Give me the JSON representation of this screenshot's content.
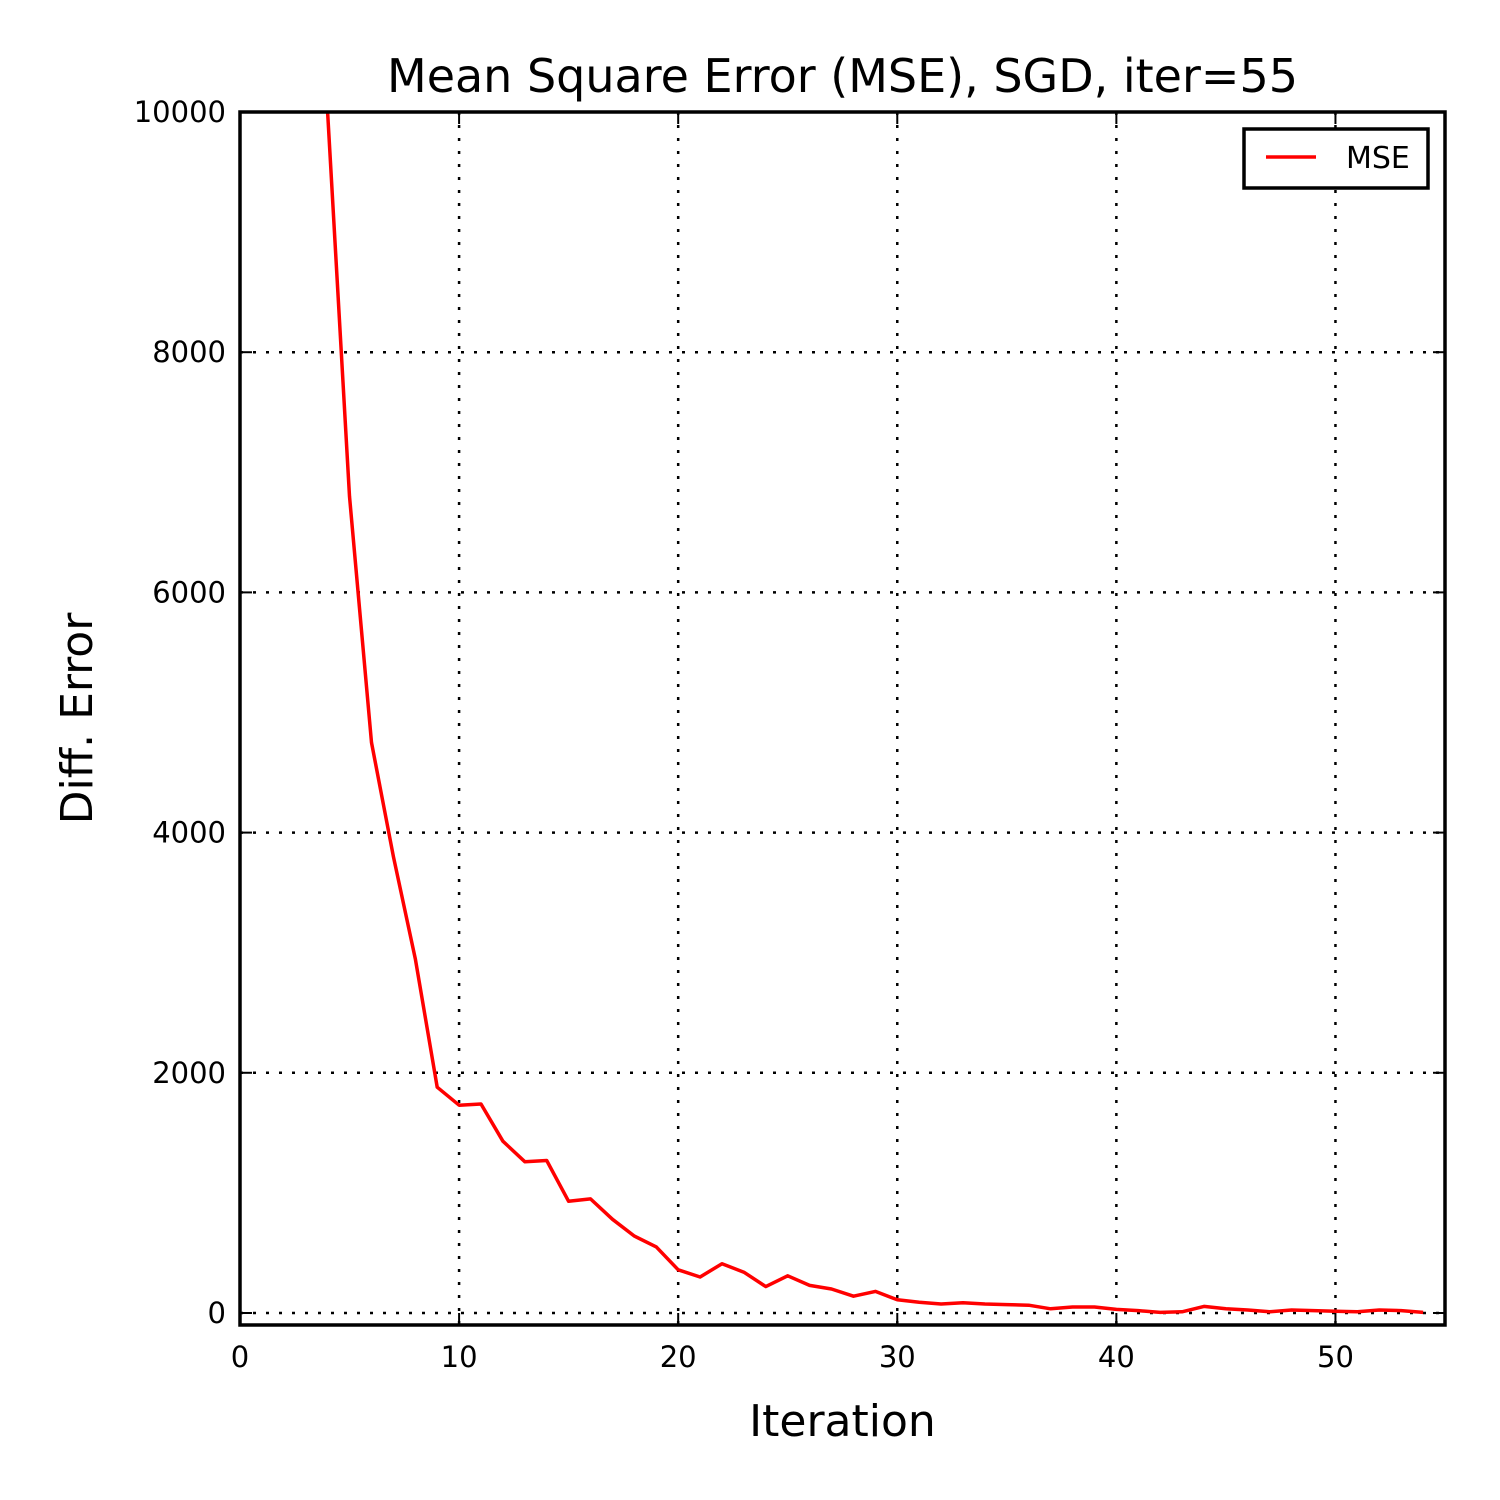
{
  "chart_data": {
    "type": "line",
    "title": "Mean Square Error (MSE), SGD, iter=55",
    "xlabel": "Iteration",
    "ylabel": "Diff. Error",
    "xlim": [
      0,
      55
    ],
    "ylim": [
      -100,
      10000
    ],
    "xticks": [
      0,
      10,
      20,
      30,
      40,
      50
    ],
    "yticks": [
      0,
      2000,
      4000,
      6000,
      8000,
      10000
    ],
    "grid": true,
    "legend_position": "top-right",
    "series": [
      {
        "name": "MSE",
        "color": "#ff0000",
        "x": [
          4,
          5,
          6,
          7,
          8,
          9,
          10,
          11,
          12,
          13,
          14,
          15,
          16,
          17,
          18,
          19,
          20,
          21,
          22,
          23,
          24,
          25,
          26,
          27,
          28,
          29,
          30,
          31,
          32,
          33,
          34,
          35,
          36,
          37,
          38,
          39,
          40,
          41,
          42,
          43,
          44,
          45,
          46,
          47,
          48,
          49,
          50,
          51,
          52,
          53,
          54
        ],
        "y": [
          10000,
          6800,
          4750,
          3800,
          2950,
          1880,
          1730,
          1740,
          1430,
          1260,
          1270,
          930,
          950,
          780,
          640,
          550,
          360,
          300,
          410,
          340,
          220,
          310,
          230,
          200,
          140,
          180,
          110,
          90,
          75,
          85,
          75,
          70,
          65,
          35,
          50,
          50,
          30,
          20,
          5,
          10,
          55,
          35,
          25,
          10,
          25,
          20,
          15,
          10,
          25,
          20,
          5
        ]
      }
    ]
  }
}
